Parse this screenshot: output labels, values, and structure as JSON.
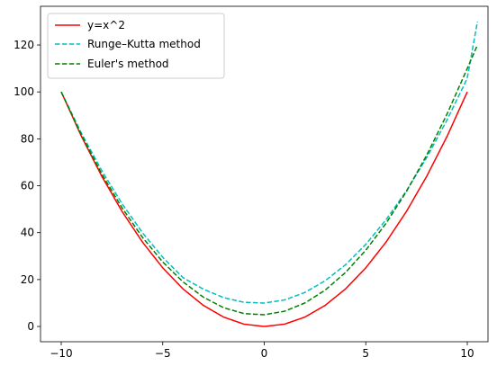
{
  "chart_data": {
    "type": "line",
    "title": "",
    "xlabel": "",
    "ylabel": "",
    "xlim": [
      -11.02,
      11.02
    ],
    "ylim": [
      -6.5,
      136.5
    ],
    "x_ticks": [
      -10,
      -5,
      0,
      5,
      10
    ],
    "y_ticks": [
      0,
      20,
      40,
      60,
      80,
      100,
      120
    ],
    "grid": false,
    "legend_position": "top-left",
    "series": [
      {
        "name": "y=x^2",
        "color": "#ff0000",
        "dash": "solid",
        "x": [
          -10,
          -9,
          -8,
          -7,
          -6,
          -5,
          -4,
          -3,
          -2,
          -1,
          0,
          1,
          2,
          3,
          4,
          5,
          6,
          7,
          8,
          9,
          10
        ],
        "y": [
          100,
          81,
          64,
          49,
          36,
          25,
          16,
          9,
          4,
          1,
          0,
          1,
          4,
          9,
          16,
          25,
          36,
          49,
          64,
          81,
          100
        ]
      },
      {
        "name": "Runge–Kutta method",
        "color": "#00bfbf",
        "dash": "dashed",
        "x": [
          -10,
          -9,
          -8,
          -7,
          -6,
          -5,
          -4,
          -3,
          -2,
          -1,
          0,
          1,
          2,
          3,
          4,
          5,
          6,
          7,
          8,
          9,
          10,
          10.5
        ],
        "y": [
          100,
          82.3,
          66.4,
          52.3,
          40,
          29.5,
          20.8,
          15.9,
          12.3,
          10.3,
          10,
          11.3,
          14.5,
          19.5,
          26.3,
          35,
          45.5,
          57.8,
          72,
          88,
          105.8,
          130
        ]
      },
      {
        "name": "Euler's method",
        "color": "#008000",
        "dash": "dashed",
        "x": [
          -10,
          -9,
          -8,
          -7,
          -6,
          -5,
          -4,
          -3,
          -2,
          -1,
          0,
          1,
          2,
          3,
          4,
          5,
          6,
          7,
          8,
          9,
          10,
          10.5
        ],
        "y": [
          100,
          81.5,
          65,
          50.5,
          38,
          27.5,
          19,
          12.5,
          8,
          5.5,
          5,
          6.5,
          10,
          15.5,
          23,
          32.5,
          44,
          57.5,
          73,
          90.5,
          110,
          120
        ]
      }
    ]
  }
}
